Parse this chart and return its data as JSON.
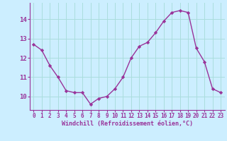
{
  "x": [
    0,
    1,
    2,
    3,
    4,
    5,
    6,
    7,
    8,
    9,
    10,
    11,
    12,
    13,
    14,
    15,
    16,
    17,
    18,
    19,
    20,
    21,
    22,
    23
  ],
  "y": [
    12.7,
    12.4,
    11.6,
    11.0,
    10.3,
    10.2,
    10.2,
    9.6,
    9.9,
    10.0,
    10.4,
    11.0,
    12.0,
    12.6,
    12.8,
    13.3,
    13.9,
    14.35,
    14.45,
    14.35,
    12.5,
    11.8,
    10.4,
    10.2
  ],
  "line_color": "#993399",
  "marker": "D",
  "marker_size": 2.2,
  "bg_color": "#cceeff",
  "grid_color": "#aadddd",
  "xlabel": "Windchill (Refroidissement éolien,°C)",
  "ylim": [
    9.3,
    14.85
  ],
  "xlim": [
    -0.5,
    23.5
  ],
  "yticks": [
    10,
    11,
    12,
    13,
    14
  ],
  "xticks": [
    0,
    1,
    2,
    3,
    4,
    5,
    6,
    7,
    8,
    9,
    10,
    11,
    12,
    13,
    14,
    15,
    16,
    17,
    18,
    19,
    20,
    21,
    22,
    23
  ],
  "tick_color": "#993399",
  "label_color": "#993399",
  "line_width": 1.0,
  "tick_fontsize": 5.5,
  "xlabel_fontsize": 6.0
}
